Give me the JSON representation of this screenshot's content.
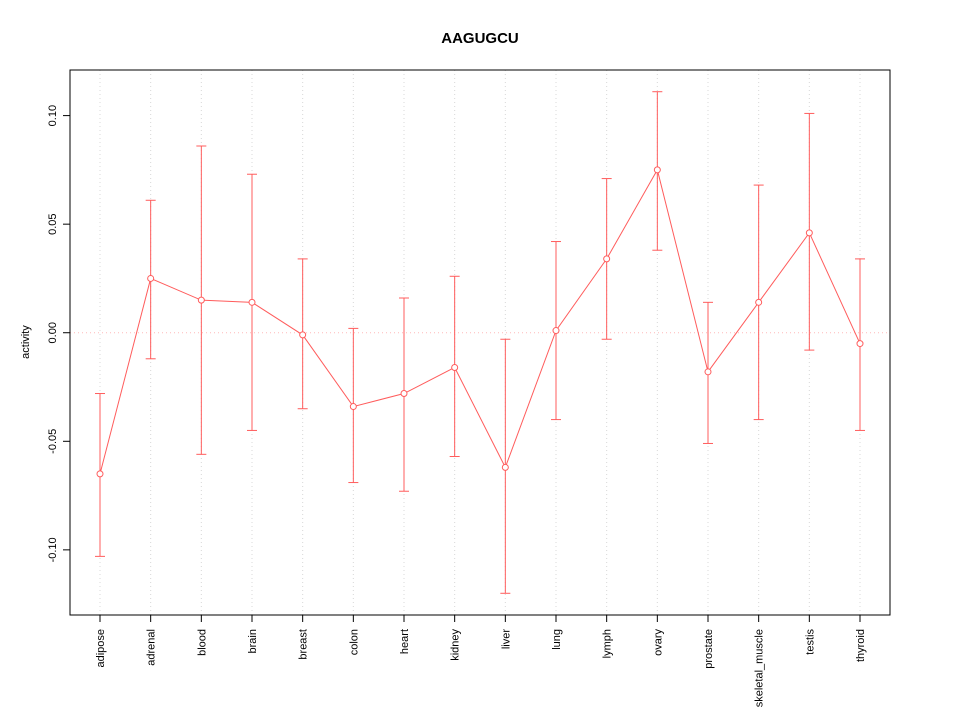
{
  "chart_data": {
    "type": "line",
    "title": "AAGUGCU",
    "xlabel": "",
    "ylabel": "activity",
    "categories": [
      "adipose",
      "adrenal",
      "blood",
      "brain",
      "breast",
      "colon",
      "heart",
      "kidney",
      "liver",
      "lung",
      "lymph",
      "ovary",
      "prostate",
      "skeletal_muscle",
      "testis",
      "thyroid"
    ],
    "series": [
      {
        "name": "activity",
        "values": [
          -0.065,
          0.025,
          0.015,
          0.014,
          -0.001,
          -0.034,
          -0.028,
          -0.016,
          -0.062,
          0.001,
          0.034,
          0.075,
          -0.018,
          0.014,
          0.046,
          -0.005
        ],
        "error_low": [
          -0.103,
          -0.012,
          -0.056,
          -0.045,
          -0.035,
          -0.069,
          -0.073,
          -0.057,
          -0.12,
          -0.04,
          -0.003,
          0.038,
          -0.051,
          -0.04,
          -0.008,
          -0.045
        ],
        "error_high": [
          -0.028,
          0.061,
          0.086,
          0.073,
          0.034,
          0.002,
          0.016,
          0.026,
          -0.003,
          0.042,
          0.071,
          0.111,
          0.014,
          0.068,
          0.101,
          0.034
        ]
      }
    ],
    "yticks": [
      -0.1,
      -0.05,
      0.0,
      0.05,
      0.1
    ],
    "ylim": [
      -0.13,
      0.121
    ],
    "grid": "vertical-dotted",
    "zero_line": true,
    "legend": "none",
    "marker": "open-circle",
    "colors": {
      "series": "#ff5c5c",
      "zero_line": "#ffb9b9",
      "grid": "#d8d8d8",
      "axis": "#000000",
      "background": "#ffffff"
    }
  }
}
